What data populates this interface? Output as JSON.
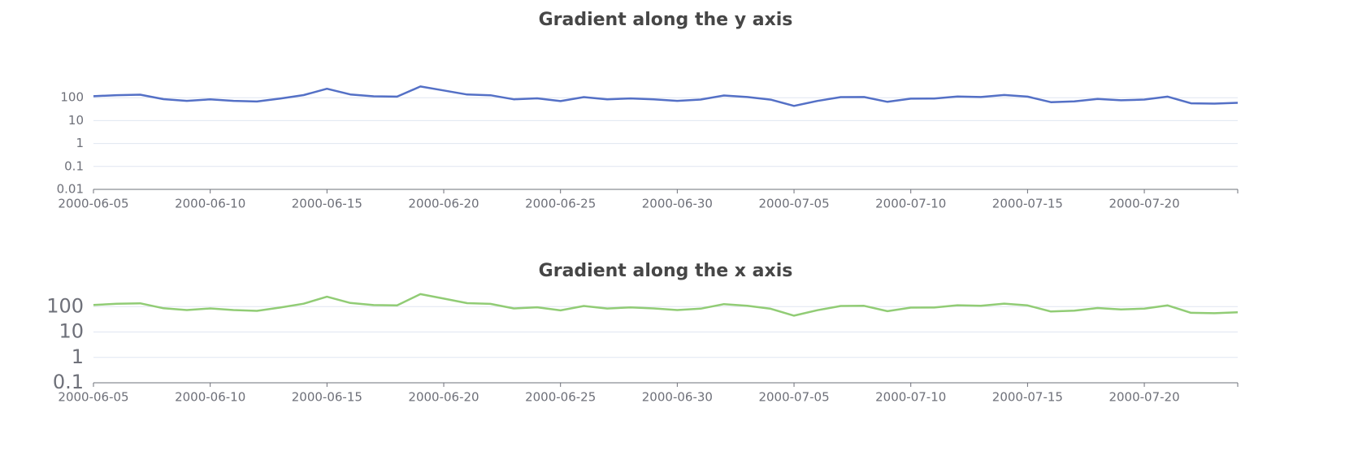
{
  "chart_data": [
    {
      "type": "line",
      "title": "Gradient along the y axis",
      "categories": [
        "2000-06-05",
        null,
        null,
        null,
        null,
        "2000-06-10",
        null,
        null,
        null,
        null,
        "2000-06-15",
        null,
        null,
        null,
        null,
        "2000-06-20",
        null,
        null,
        null,
        null,
        "2000-06-25",
        null,
        null,
        null,
        null,
        "2000-06-30",
        null,
        null,
        null,
        null,
        "2000-07-05",
        null,
        null,
        null,
        null,
        "2000-07-10",
        null,
        null,
        null,
        null,
        "2000-07-15",
        null,
        null,
        null,
        null,
        "2000-07-20",
        null,
        null,
        null,
        null
      ],
      "values": [
        116,
        129,
        135,
        86,
        73,
        85,
        73,
        68,
        92,
        130,
        245,
        139,
        115,
        111,
        309,
        206,
        137,
        128,
        85,
        94,
        71,
        106,
        84,
        93,
        85,
        73,
        83,
        125,
        107,
        82,
        44,
        72,
        106,
        107,
        66,
        91,
        92,
        113,
        107,
        131,
        111,
        64,
        69,
        88,
        77,
        83,
        111,
        57,
        55,
        60
      ],
      "color": "#5470c6",
      "log": true,
      "ylim": [
        0.01,
        1000
      ],
      "yticks": [
        0.01,
        0.1,
        1,
        10,
        100
      ],
      "grid": true
    },
    {
      "type": "line",
      "title": "Gradient along the x axis",
      "categories": [
        "2000-06-05",
        null,
        null,
        null,
        null,
        "2000-06-10",
        null,
        null,
        null,
        null,
        "2000-06-15",
        null,
        null,
        null,
        null,
        "2000-06-20",
        null,
        null,
        null,
        null,
        "2000-06-25",
        null,
        null,
        null,
        null,
        "2000-06-30",
        null,
        null,
        null,
        null,
        "2000-07-05",
        null,
        null,
        null,
        null,
        "2000-07-10",
        null,
        null,
        null,
        null,
        "2000-07-15",
        null,
        null,
        null,
        null,
        "2000-07-20",
        null,
        null,
        null,
        null
      ],
      "values": [
        116,
        129,
        135,
        86,
        73,
        85,
        73,
        68,
        92,
        130,
        245,
        139,
        115,
        111,
        309,
        206,
        137,
        128,
        85,
        94,
        71,
        106,
        84,
        93,
        85,
        73,
        83,
        125,
        107,
        82,
        44,
        72,
        106,
        107,
        66,
        91,
        92,
        113,
        107,
        131,
        111,
        64,
        69,
        88,
        77,
        83,
        111,
        57,
        55,
        60
      ],
      "color": "#91cc75",
      "log": true,
      "ylim": [
        0.1,
        1000
      ],
      "yticks": [
        0.1,
        1,
        10,
        100
      ],
      "grid": true
    }
  ]
}
